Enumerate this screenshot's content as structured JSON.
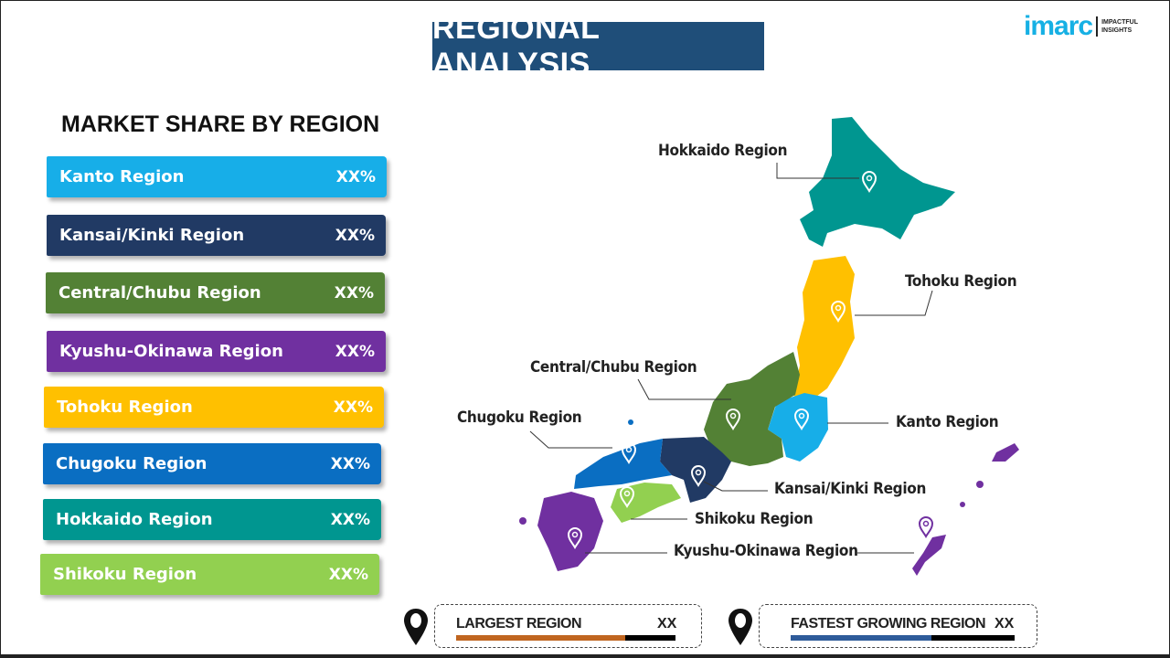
{
  "header": {
    "title": "REGIONAL ANALYSIS"
  },
  "logo": {
    "word": "imarc",
    "tagline_1": "IMPACTFUL",
    "tagline_2": "INSIGHTS"
  },
  "market_share": {
    "title": "MARKET SHARE BY REGION",
    "items": [
      {
        "label": "Kanto  Region",
        "value": "XX%",
        "color": "#17aee8"
      },
      {
        "label": "Kansai/Kinki  Region",
        "value": "XX%",
        "color": "#213a64"
      },
      {
        "label": "Central/Chubu  Region",
        "value": "XX%",
        "color": "#538135"
      },
      {
        "label": "Kyushu-Okinawa  Region",
        "value": "XX%",
        "color": "#7030a0"
      },
      {
        "label": "Tohoku  Region",
        "value": "XX%",
        "color": "#ffc000"
      },
      {
        "label": "Chugoku  Region",
        "value": "XX%",
        "color": "#0a6ec2"
      },
      {
        "label": "Hokkaido  Region",
        "value": "XX%",
        "color": "#009690"
      },
      {
        "label": "Shikoku  Region",
        "value": "XX%",
        "color": "#92d050"
      }
    ]
  },
  "map_labels": {
    "hokkaido": "Hokkaido Region",
    "tohoku": "Tohoku Region",
    "central": "Central/Chubu Region",
    "kanto": "Kanto Region",
    "chugoku": "Chugoku Region",
    "kansai": "Kansai/Kinki Region",
    "shikoku": "Shikoku Region",
    "kyushu": "Kyushu-Okinawa Region"
  },
  "footer": {
    "largest": {
      "label": "LARGEST REGION",
      "value": "XX",
      "fill_percent": 77,
      "color": "#c0651f"
    },
    "fastest": {
      "label": "FASTEST GROWING REGION",
      "value": "XX",
      "fill_percent": 63,
      "color": "#2e5b9a"
    }
  }
}
